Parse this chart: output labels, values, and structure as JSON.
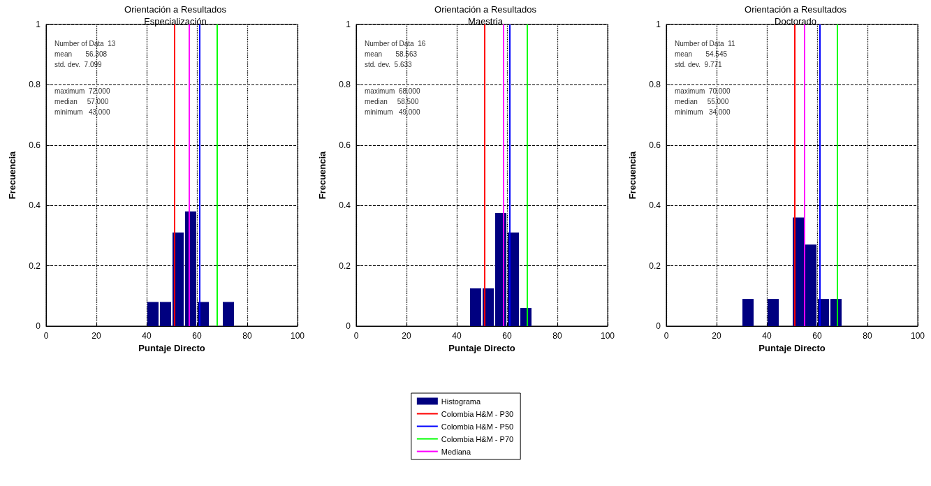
{
  "chart_data": [
    {
      "type": "histogram",
      "title": "Orientación a Resultados",
      "subtitle": "Especialización",
      "xlabel": "Puntaje Directo",
      "ylabel": "Frecuencia",
      "bins": [
        40,
        45,
        50,
        55,
        60,
        65,
        70,
        75
      ],
      "series": [
        {
          "color": "#000080",
          "values": [
            0.08,
            0.08,
            0.31,
            0.38,
            0.08,
            0,
            0.08
          ]
        }
      ],
      "xlim": [
        0,
        100
      ],
      "xticks": [
        0,
        20,
        40,
        60,
        80,
        100
      ],
      "ylim": [
        0,
        1
      ],
      "yticks": [
        0,
        0.2,
        0.4,
        0.6,
        0.8,
        1
      ],
      "grid": true,
      "ref_lines": [
        {
          "axis": "x",
          "value": 51,
          "color": "#ff0000"
        },
        {
          "axis": "x",
          "value": 61,
          "color": "#0000ff"
        },
        {
          "axis": "x",
          "value": 68,
          "color": "#00ff00"
        },
        {
          "axis": "x",
          "value": 57,
          "color": "#ff00ff"
        }
      ],
      "annotations": [
        "Number of Data  13",
        "mean       56.308",
        "std. dev.  7.099",
        "maximum  72.000",
        "median     57.000",
        "minimum   43.000"
      ]
    },
    {
      "type": "histogram",
      "title": "Orientación a Resultados",
      "subtitle": "Maestria",
      "xlabel": "Puntaje Directo",
      "ylabel": "Frecuencia",
      "bins": [
        45,
        50,
        55,
        60,
        65,
        70
      ],
      "series": [
        {
          "name": "Histograma",
          "color": "#000080",
          "values": [
            0.125,
            0.125,
            0.375,
            0.31,
            0.06
          ]
        }
      ],
      "xlim": [
        0,
        100
      ],
      "xticks": [
        0,
        20,
        40,
        60,
        80,
        100
      ],
      "ylim": [
        0,
        1
      ],
      "yticks": [
        0,
        0.2,
        0.4,
        0.6,
        0.8,
        1
      ],
      "grid": true,
      "legend": "bottom",
      "ref_lines": [
        {
          "axis": "x",
          "value": 51,
          "color": "#ff0000",
          "label": "Colombia H&M - P30"
        },
        {
          "axis": "x",
          "value": 61,
          "color": "#0000ff",
          "label": "Colombia H&M - P50"
        },
        {
          "axis": "x",
          "value": 68,
          "color": "#00ff00",
          "label": "Colombia H&M - P70"
        },
        {
          "axis": "x",
          "value": 58.5,
          "color": "#ff00ff",
          "label": "Mediana"
        }
      ],
      "annotations": [
        "Number of Data  16",
        "mean       58.563",
        "std. dev.  5.633",
        "maximum  68.000",
        "median     58.500",
        "minimum   49.000"
      ]
    },
    {
      "type": "histogram",
      "title": "Orientación a Resultados",
      "subtitle": "Doctorado",
      "xlabel": "Puntaje Directo",
      "ylabel": "Frecuencia",
      "bins": [
        30,
        35,
        40,
        45,
        50,
        55,
        60,
        65,
        70
      ],
      "series": [
        {
          "color": "#000080",
          "values": [
            0.09,
            0,
            0.09,
            0,
            0.36,
            0.27,
            0.09,
            0.09
          ]
        }
      ],
      "xlim": [
        0,
        100
      ],
      "xticks": [
        0,
        20,
        40,
        60,
        80,
        100
      ],
      "ylim": [
        0,
        1
      ],
      "yticks": [
        0,
        0.2,
        0.4,
        0.6,
        0.8,
        1
      ],
      "grid": true,
      "ref_lines": [
        {
          "axis": "x",
          "value": 51,
          "color": "#ff0000"
        },
        {
          "axis": "x",
          "value": 61,
          "color": "#0000ff"
        },
        {
          "axis": "x",
          "value": 68,
          "color": "#00ff00"
        },
        {
          "axis": "x",
          "value": 55,
          "color": "#ff00ff"
        }
      ],
      "annotations": [
        "Number of Data  11",
        "mean       54.545",
        "std. dev.  9.771",
        "maximum  70.000",
        "median     55.000",
        "minimum   34.000"
      ]
    }
  ]
}
